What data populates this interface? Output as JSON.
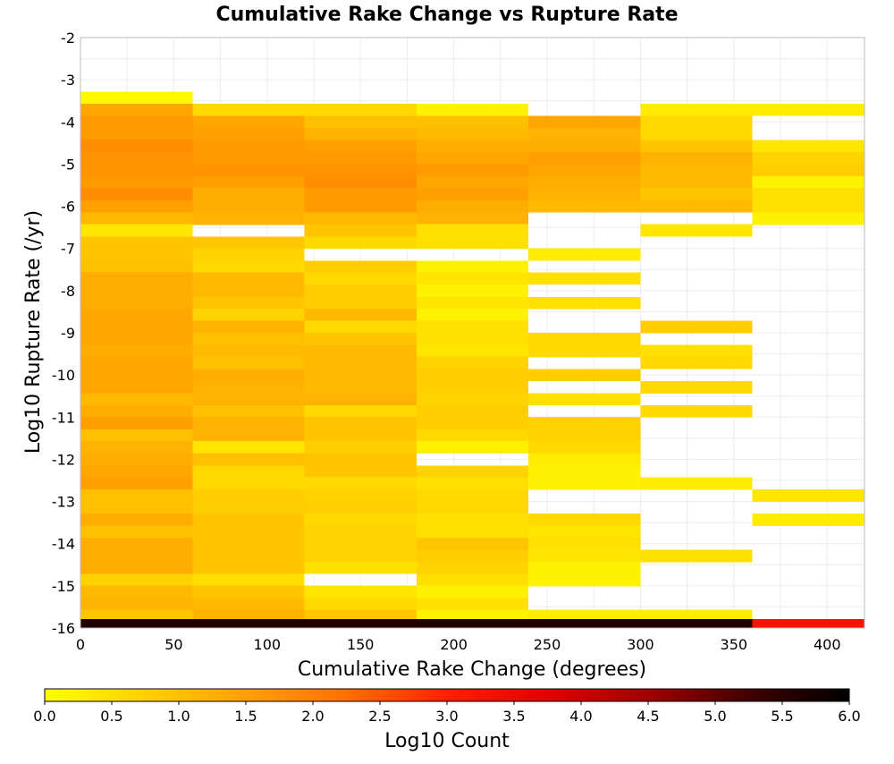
{
  "chart_data": {
    "type": "heatmap",
    "title": "Cumulative Rake Change vs Rupture Rate",
    "xlabel": "Cumulative Rake Change (degrees)",
    "ylabel": "Log10 Rupture Rate (/yr)",
    "xlim": [
      0,
      420
    ],
    "ylim": [
      -16,
      -2
    ],
    "xticks": [
      "0",
      "50",
      "100",
      "150",
      "200",
      "250",
      "300",
      "350",
      "400"
    ],
    "yticks": [
      "-2",
      "-3",
      "-4",
      "-5",
      "-6",
      "-7",
      "-8",
      "-9",
      "-10",
      "-11",
      "-12",
      "-13",
      "-14",
      "-15",
      "-16"
    ],
    "grid": true,
    "x_bin_width": 60,
    "y_bin_height": 0.2857,
    "colorbar": {
      "label": "Log10 Count",
      "range": [
        0,
        6
      ],
      "ticks": [
        "0.0",
        "0.5",
        "1.0",
        "1.5",
        "2.0",
        "2.5",
        "3.0",
        "3.5",
        "4.0",
        "4.5",
        "5.0",
        "5.5",
        "6.0"
      ],
      "colors": [
        "#ffff00",
        "#ffd000",
        "#ffa000",
        "#ff7000",
        "#ff2000",
        "#e00000",
        "#a00000",
        "#400000",
        "#000000"
      ]
    },
    "columns": [
      {
        "x_center": 30,
        "cells": [
          {
            "y": -3.43,
            "v": 0.1
          },
          {
            "y": -3.71,
            "v": 1.4
          },
          {
            "y": -4.0,
            "v": 1.6
          },
          {
            "y": -4.29,
            "v": 1.6
          },
          {
            "y": -4.57,
            "v": 1.8
          },
          {
            "y": -4.86,
            "v": 1.7
          },
          {
            "y": -5.14,
            "v": 1.7
          },
          {
            "y": -5.43,
            "v": 1.6
          },
          {
            "y": -5.71,
            "v": 1.8
          },
          {
            "y": -6.0,
            "v": 1.5
          },
          {
            "y": -6.29,
            "v": 1.1
          },
          {
            "y": -6.57,
            "v": 0.4
          },
          {
            "y": -6.86,
            "v": 0.9
          },
          {
            "y": -7.14,
            "v": 0.9
          },
          {
            "y": -7.43,
            "v": 1.0
          },
          {
            "y": -7.71,
            "v": 1.3
          },
          {
            "y": -8.0,
            "v": 1.3
          },
          {
            "y": -8.29,
            "v": 1.3
          },
          {
            "y": -8.57,
            "v": 1.4
          },
          {
            "y": -8.86,
            "v": 1.4
          },
          {
            "y": -9.14,
            "v": 1.4
          },
          {
            "y": -9.43,
            "v": 1.3
          },
          {
            "y": -9.71,
            "v": 1.4
          },
          {
            "y": -10.0,
            "v": 1.4
          },
          {
            "y": -10.29,
            "v": 1.4
          },
          {
            "y": -10.57,
            "v": 1.1
          },
          {
            "y": -10.86,
            "v": 1.3
          },
          {
            "y": -11.14,
            "v": 1.5
          },
          {
            "y": -11.43,
            "v": 1.0
          },
          {
            "y": -11.71,
            "v": 1.2
          },
          {
            "y": -12.0,
            "v": 1.3
          },
          {
            "y": -12.29,
            "v": 1.4
          },
          {
            "y": -12.57,
            "v": 1.5
          },
          {
            "y": -12.86,
            "v": 1.0
          },
          {
            "y": -13.14,
            "v": 1.0
          },
          {
            "y": -13.43,
            "v": 1.3
          },
          {
            "y": -13.71,
            "v": 1.0
          },
          {
            "y": -14.0,
            "v": 1.3
          },
          {
            "y": -14.29,
            "v": 1.3
          },
          {
            "y": -14.57,
            "v": 1.3
          },
          {
            "y": -14.86,
            "v": 0.7
          },
          {
            "y": -15.14,
            "v": 1.1
          },
          {
            "y": -15.43,
            "v": 1.2
          },
          {
            "y": -15.71,
            "v": 0.9
          },
          {
            "y": -15.93,
            "v": 5.6
          }
        ]
      },
      {
        "x_center": 90,
        "cells": [
          {
            "y": -3.71,
            "v": 0.6
          },
          {
            "y": -4.0,
            "v": 1.4
          },
          {
            "y": -4.29,
            "v": 1.5
          },
          {
            "y": -4.57,
            "v": 1.6
          },
          {
            "y": -4.86,
            "v": 1.6
          },
          {
            "y": -5.14,
            "v": 1.7
          },
          {
            "y": -5.43,
            "v": 1.5
          },
          {
            "y": -5.71,
            "v": 1.3
          },
          {
            "y": -6.0,
            "v": 1.3
          },
          {
            "y": -6.29,
            "v": 1.2
          },
          {
            "y": -6.86,
            "v": 0.9
          },
          {
            "y": -7.14,
            "v": 0.7
          },
          {
            "y": -7.43,
            "v": 0.6
          },
          {
            "y": -7.71,
            "v": 1.1
          },
          {
            "y": -8.0,
            "v": 1.1
          },
          {
            "y": -8.29,
            "v": 0.9
          },
          {
            "y": -8.57,
            "v": 0.7
          },
          {
            "y": -8.86,
            "v": 1.2
          },
          {
            "y": -9.14,
            "v": 1.0
          },
          {
            "y": -9.43,
            "v": 1.1
          },
          {
            "y": -9.71,
            "v": 1.0
          },
          {
            "y": -10.0,
            "v": 1.3
          },
          {
            "y": -10.29,
            "v": 1.2
          },
          {
            "y": -10.57,
            "v": 1.2
          },
          {
            "y": -10.86,
            "v": 1.0
          },
          {
            "y": -11.14,
            "v": 1.2
          },
          {
            "y": -11.43,
            "v": 1.2
          },
          {
            "y": -11.71,
            "v": 0.4
          },
          {
            "y": -12.0,
            "v": 1.0
          },
          {
            "y": -12.29,
            "v": 0.6
          },
          {
            "y": -12.57,
            "v": 0.6
          },
          {
            "y": -12.86,
            "v": 0.8
          },
          {
            "y": -13.14,
            "v": 0.8
          },
          {
            "y": -13.43,
            "v": 0.9
          },
          {
            "y": -13.71,
            "v": 0.9
          },
          {
            "y": -14.0,
            "v": 0.9
          },
          {
            "y": -14.29,
            "v": 0.9
          },
          {
            "y": -14.57,
            "v": 0.9
          },
          {
            "y": -14.86,
            "v": 0.5
          },
          {
            "y": -15.14,
            "v": 0.9
          },
          {
            "y": -15.43,
            "v": 1.1
          },
          {
            "y": -15.71,
            "v": 1.2
          },
          {
            "y": -15.93,
            "v": 5.6
          }
        ]
      },
      {
        "x_center": 150,
        "cells": [
          {
            "y": -3.71,
            "v": 0.6
          },
          {
            "y": -4.0,
            "v": 1.0
          },
          {
            "y": -4.29,
            "v": 1.2
          },
          {
            "y": -4.57,
            "v": 1.5
          },
          {
            "y": -4.86,
            "v": 1.6
          },
          {
            "y": -5.14,
            "v": 1.7
          },
          {
            "y": -5.43,
            "v": 1.8
          },
          {
            "y": -5.71,
            "v": 1.6
          },
          {
            "y": -6.0,
            "v": 1.6
          },
          {
            "y": -6.29,
            "v": 1.1
          },
          {
            "y": -6.57,
            "v": 0.9
          },
          {
            "y": -6.86,
            "v": 0.6
          },
          {
            "y": -7.43,
            "v": 0.8
          },
          {
            "y": -7.71,
            "v": 0.6
          },
          {
            "y": -8.0,
            "v": 0.8
          },
          {
            "y": -8.29,
            "v": 0.8
          },
          {
            "y": -8.57,
            "v": 1.1
          },
          {
            "y": -8.86,
            "v": 0.6
          },
          {
            "y": -9.14,
            "v": 0.9
          },
          {
            "y": -9.43,
            "v": 1.1
          },
          {
            "y": -9.71,
            "v": 1.1
          },
          {
            "y": -10.0,
            "v": 1.1
          },
          {
            "y": -10.29,
            "v": 1.1
          },
          {
            "y": -10.57,
            "v": 1.2
          },
          {
            "y": -10.86,
            "v": 0.6
          },
          {
            "y": -11.14,
            "v": 0.9
          },
          {
            "y": -11.43,
            "v": 0.9
          },
          {
            "y": -11.71,
            "v": 0.8
          },
          {
            "y": -12.0,
            "v": 0.9
          },
          {
            "y": -12.29,
            "v": 0.9
          },
          {
            "y": -12.57,
            "v": 0.6
          },
          {
            "y": -12.86,
            "v": 0.7
          },
          {
            "y": -13.14,
            "v": 0.8
          },
          {
            "y": -13.43,
            "v": 0.6
          },
          {
            "y": -13.71,
            "v": 0.7
          },
          {
            "y": -14.0,
            "v": 0.7
          },
          {
            "y": -14.29,
            "v": 0.7
          },
          {
            "y": -14.57,
            "v": 0.5
          },
          {
            "y": -15.14,
            "v": 0.4
          },
          {
            "y": -15.43,
            "v": 0.6
          },
          {
            "y": -15.71,
            "v": 0.9
          },
          {
            "y": -15.93,
            "v": 5.6
          }
        ]
      },
      {
        "x_center": 210,
        "cells": [
          {
            "y": -3.71,
            "v": 0.2
          },
          {
            "y": -4.0,
            "v": 1.0
          },
          {
            "y": -4.29,
            "v": 1.1
          },
          {
            "y": -4.57,
            "v": 1.3
          },
          {
            "y": -4.86,
            "v": 1.4
          },
          {
            "y": -5.14,
            "v": 1.6
          },
          {
            "y": -5.43,
            "v": 1.4
          },
          {
            "y": -5.71,
            "v": 1.5
          },
          {
            "y": -6.0,
            "v": 1.3
          },
          {
            "y": -6.29,
            "v": 1.2
          },
          {
            "y": -6.57,
            "v": 0.5
          },
          {
            "y": -6.86,
            "v": 0.5
          },
          {
            "y": -7.43,
            "v": 0.2
          },
          {
            "y": -7.71,
            "v": 0.4
          },
          {
            "y": -8.0,
            "v": 0.2
          },
          {
            "y": -8.29,
            "v": 0.4
          },
          {
            "y": -8.57,
            "v": 0.2
          },
          {
            "y": -8.86,
            "v": 0.5
          },
          {
            "y": -9.14,
            "v": 0.5
          },
          {
            "y": -9.43,
            "v": 0.4
          },
          {
            "y": -9.71,
            "v": 0.7
          },
          {
            "y": -10.0,
            "v": 0.8
          },
          {
            "y": -10.29,
            "v": 0.8
          },
          {
            "y": -10.57,
            "v": 0.7
          },
          {
            "y": -10.86,
            "v": 0.8
          },
          {
            "y": -11.14,
            "v": 0.8
          },
          {
            "y": -11.43,
            "v": 0.6
          },
          {
            "y": -11.71,
            "v": 0.2
          },
          {
            "y": -12.29,
            "v": 0.7
          },
          {
            "y": -12.57,
            "v": 0.5
          },
          {
            "y": -12.86,
            "v": 0.6
          },
          {
            "y": -13.14,
            "v": 0.6
          },
          {
            "y": -13.43,
            "v": 0.5
          },
          {
            "y": -13.71,
            "v": 0.5
          },
          {
            "y": -14.0,
            "v": 0.9
          },
          {
            "y": -14.29,
            "v": 0.8
          },
          {
            "y": -14.57,
            "v": 0.7
          },
          {
            "y": -14.86,
            "v": 0.5
          },
          {
            "y": -15.14,
            "v": 0.2
          },
          {
            "y": -15.43,
            "v": 0.5
          },
          {
            "y": -15.71,
            "v": 0.2
          },
          {
            "y": -15.93,
            "v": 5.6
          }
        ]
      },
      {
        "x_center": 270,
        "cells": [
          {
            "y": -4.0,
            "v": 1.4
          },
          {
            "y": -4.29,
            "v": 1.2
          },
          {
            "y": -4.57,
            "v": 1.3
          },
          {
            "y": -4.86,
            "v": 1.5
          },
          {
            "y": -5.14,
            "v": 1.4
          },
          {
            "y": -5.43,
            "v": 1.3
          },
          {
            "y": -5.71,
            "v": 1.2
          },
          {
            "y": -6.0,
            "v": 1.1
          },
          {
            "y": -7.14,
            "v": 0.3
          },
          {
            "y": -7.71,
            "v": 0.5
          },
          {
            "y": -8.29,
            "v": 0.5
          },
          {
            "y": -9.14,
            "v": 0.6
          },
          {
            "y": -9.43,
            "v": 0.6
          },
          {
            "y": -10.0,
            "v": 0.8
          },
          {
            "y": -10.57,
            "v": 0.5
          },
          {
            "y": -11.14,
            "v": 0.7
          },
          {
            "y": -11.43,
            "v": 0.7
          },
          {
            "y": -11.71,
            "v": 0.6
          },
          {
            "y": -12.0,
            "v": 0.3
          },
          {
            "y": -12.29,
            "v": 0.2
          },
          {
            "y": -12.57,
            "v": 0.2
          },
          {
            "y": -13.43,
            "v": 0.6
          },
          {
            "y": -13.71,
            "v": 0.4
          },
          {
            "y": -14.0,
            "v": 0.5
          },
          {
            "y": -14.29,
            "v": 0.4
          },
          {
            "y": -14.57,
            "v": 0.2
          },
          {
            "y": -14.86,
            "v": 0.2
          },
          {
            "y": -15.71,
            "v": 0.3
          },
          {
            "y": -15.93,
            "v": 5.6
          }
        ]
      },
      {
        "x_center": 330,
        "cells": [
          {
            "y": -3.71,
            "v": 0.3
          },
          {
            "y": -4.0,
            "v": 0.6
          },
          {
            "y": -4.29,
            "v": 0.6
          },
          {
            "y": -4.57,
            "v": 0.9
          },
          {
            "y": -4.86,
            "v": 1.2
          },
          {
            "y": -5.14,
            "v": 1.1
          },
          {
            "y": -5.43,
            "v": 1.1
          },
          {
            "y": -5.71,
            "v": 0.9
          },
          {
            "y": -6.0,
            "v": 1.1
          },
          {
            "y": -6.57,
            "v": 0.4
          },
          {
            "y": -8.86,
            "v": 0.8
          },
          {
            "y": -9.43,
            "v": 0.5
          },
          {
            "y": -9.71,
            "v": 0.6
          },
          {
            "y": -10.29,
            "v": 0.6
          },
          {
            "y": -10.86,
            "v": 0.6
          },
          {
            "y": -12.57,
            "v": 0.3
          },
          {
            "y": -14.29,
            "v": 0.5
          },
          {
            "y": -15.71,
            "v": 0.3
          },
          {
            "y": -15.93,
            "v": 5.6
          }
        ]
      },
      {
        "x_center": 390,
        "cells": [
          {
            "y": -3.71,
            "v": 0.3
          },
          {
            "y": -4.57,
            "v": 0.4
          },
          {
            "y": -4.86,
            "v": 0.7
          },
          {
            "y": -5.14,
            "v": 0.8
          },
          {
            "y": -5.43,
            "v": 0.2
          },
          {
            "y": -5.71,
            "v": 0.5
          },
          {
            "y": -6.0,
            "v": 0.5
          },
          {
            "y": -6.29,
            "v": 0.2
          },
          {
            "y": -12.86,
            "v": 0.4
          },
          {
            "y": -13.43,
            "v": 0.3
          },
          {
            "y": -15.93,
            "v": 3.3
          }
        ]
      }
    ]
  }
}
